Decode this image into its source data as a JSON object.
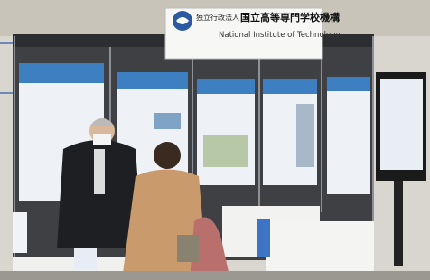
{
  "sign": {
    "org_type": "独立行政法人",
    "name_ja": "国立高等専門学校機構",
    "name_en": "National Institute of Technology"
  }
}
